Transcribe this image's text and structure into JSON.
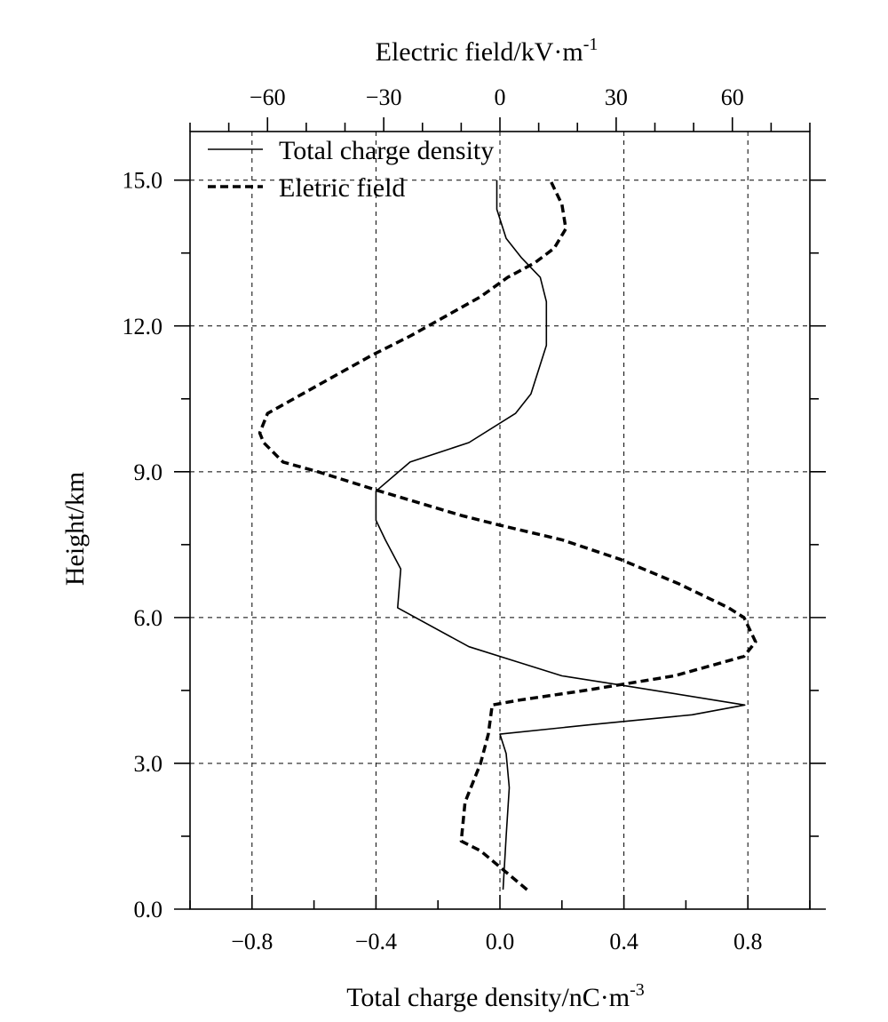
{
  "chart_data": {
    "type": "line",
    "xlabel": "Total charge density/nC·m",
    "xlabel_exp": "-3",
    "x2label": "Electric field/kV·m",
    "x2label_exp": "-1",
    "ylabel": "Height/km",
    "xlim": [
      -1.0,
      1.0
    ],
    "x2lim": [
      -80.0,
      80.0
    ],
    "ylim": [
      0.0,
      16.0
    ],
    "x_ticks": [
      -0.8,
      -0.4,
      0.0,
      0.4,
      0.8
    ],
    "x_tick_labels": [
      "−0.8",
      "−0.4",
      "0.0",
      "0.4",
      "0.8"
    ],
    "x2_ticks": [
      -60,
      -30,
      0,
      30,
      60
    ],
    "x2_tick_labels": [
      "−60",
      "−30",
      "0",
      "30",
      "60"
    ],
    "y_ticks": [
      0,
      3,
      6,
      9,
      12,
      15
    ],
    "y_tick_labels": [
      "0.0",
      "3.0",
      "6.0",
      "9.0",
      "12.0",
      "15.0"
    ],
    "grid": true,
    "legend_position": "top-left",
    "series": [
      {
        "name": "Total charge density",
        "axis": "bottom",
        "style": "solid",
        "points": [
          [
            0.01,
            0.4
          ],
          [
            0.02,
            1.5
          ],
          [
            0.03,
            2.5
          ],
          [
            0.02,
            3.2
          ],
          [
            0.0,
            3.6
          ],
          [
            0.3,
            3.8
          ],
          [
            0.62,
            4.0
          ],
          [
            0.79,
            4.2
          ],
          [
            0.4,
            4.6
          ],
          [
            0.2,
            4.8
          ],
          [
            0.05,
            5.1
          ],
          [
            -0.1,
            5.4
          ],
          [
            -0.33,
            6.2
          ],
          [
            -0.32,
            7.0
          ],
          [
            -0.37,
            7.6
          ],
          [
            -0.4,
            8.0
          ],
          [
            -0.4,
            8.6
          ],
          [
            -0.29,
            9.2
          ],
          [
            -0.1,
            9.6
          ],
          [
            0.05,
            10.2
          ],
          [
            0.1,
            10.6
          ],
          [
            0.15,
            11.6
          ],
          [
            0.15,
            12.5
          ],
          [
            0.13,
            13.0
          ],
          [
            0.07,
            13.4
          ],
          [
            0.02,
            13.8
          ],
          [
            -0.01,
            14.4
          ],
          [
            -0.01,
            15.0
          ]
        ]
      },
      {
        "name": "Eletric field",
        "axis": "top",
        "style": "dashed",
        "points": [
          [
            7,
            0.4
          ],
          [
            1,
            0.8
          ],
          [
            -5,
            1.2
          ],
          [
            -10,
            1.4
          ],
          [
            -9,
            2.2
          ],
          [
            -5,
            3.0
          ],
          [
            -3,
            3.6
          ],
          [
            -2,
            4.2
          ],
          [
            5,
            4.3
          ],
          [
            22,
            4.5
          ],
          [
            45,
            4.8
          ],
          [
            54,
            5.0
          ],
          [
            63,
            5.2
          ],
          [
            66,
            5.5
          ],
          [
            63,
            6.0
          ],
          [
            59,
            6.2
          ],
          [
            46,
            6.7
          ],
          [
            31,
            7.2
          ],
          [
            16,
            7.6
          ],
          [
            0,
            7.9
          ],
          [
            -10,
            8.1
          ],
          [
            -31,
            8.6
          ],
          [
            -47,
            9.0
          ],
          [
            -56,
            9.2
          ],
          [
            -61,
            9.6
          ],
          [
            -62,
            9.8
          ],
          [
            -60,
            10.2
          ],
          [
            -51,
            10.6
          ],
          [
            -42,
            11.0
          ],
          [
            -33,
            11.4
          ],
          [
            -23,
            11.8
          ],
          [
            -14,
            12.2
          ],
          [
            -5,
            12.6
          ],
          [
            2,
            13.0
          ],
          [
            9,
            13.3
          ],
          [
            14,
            13.6
          ],
          [
            17,
            14.0
          ],
          [
            16,
            14.5
          ],
          [
            13,
            15.0
          ]
        ]
      }
    ]
  }
}
